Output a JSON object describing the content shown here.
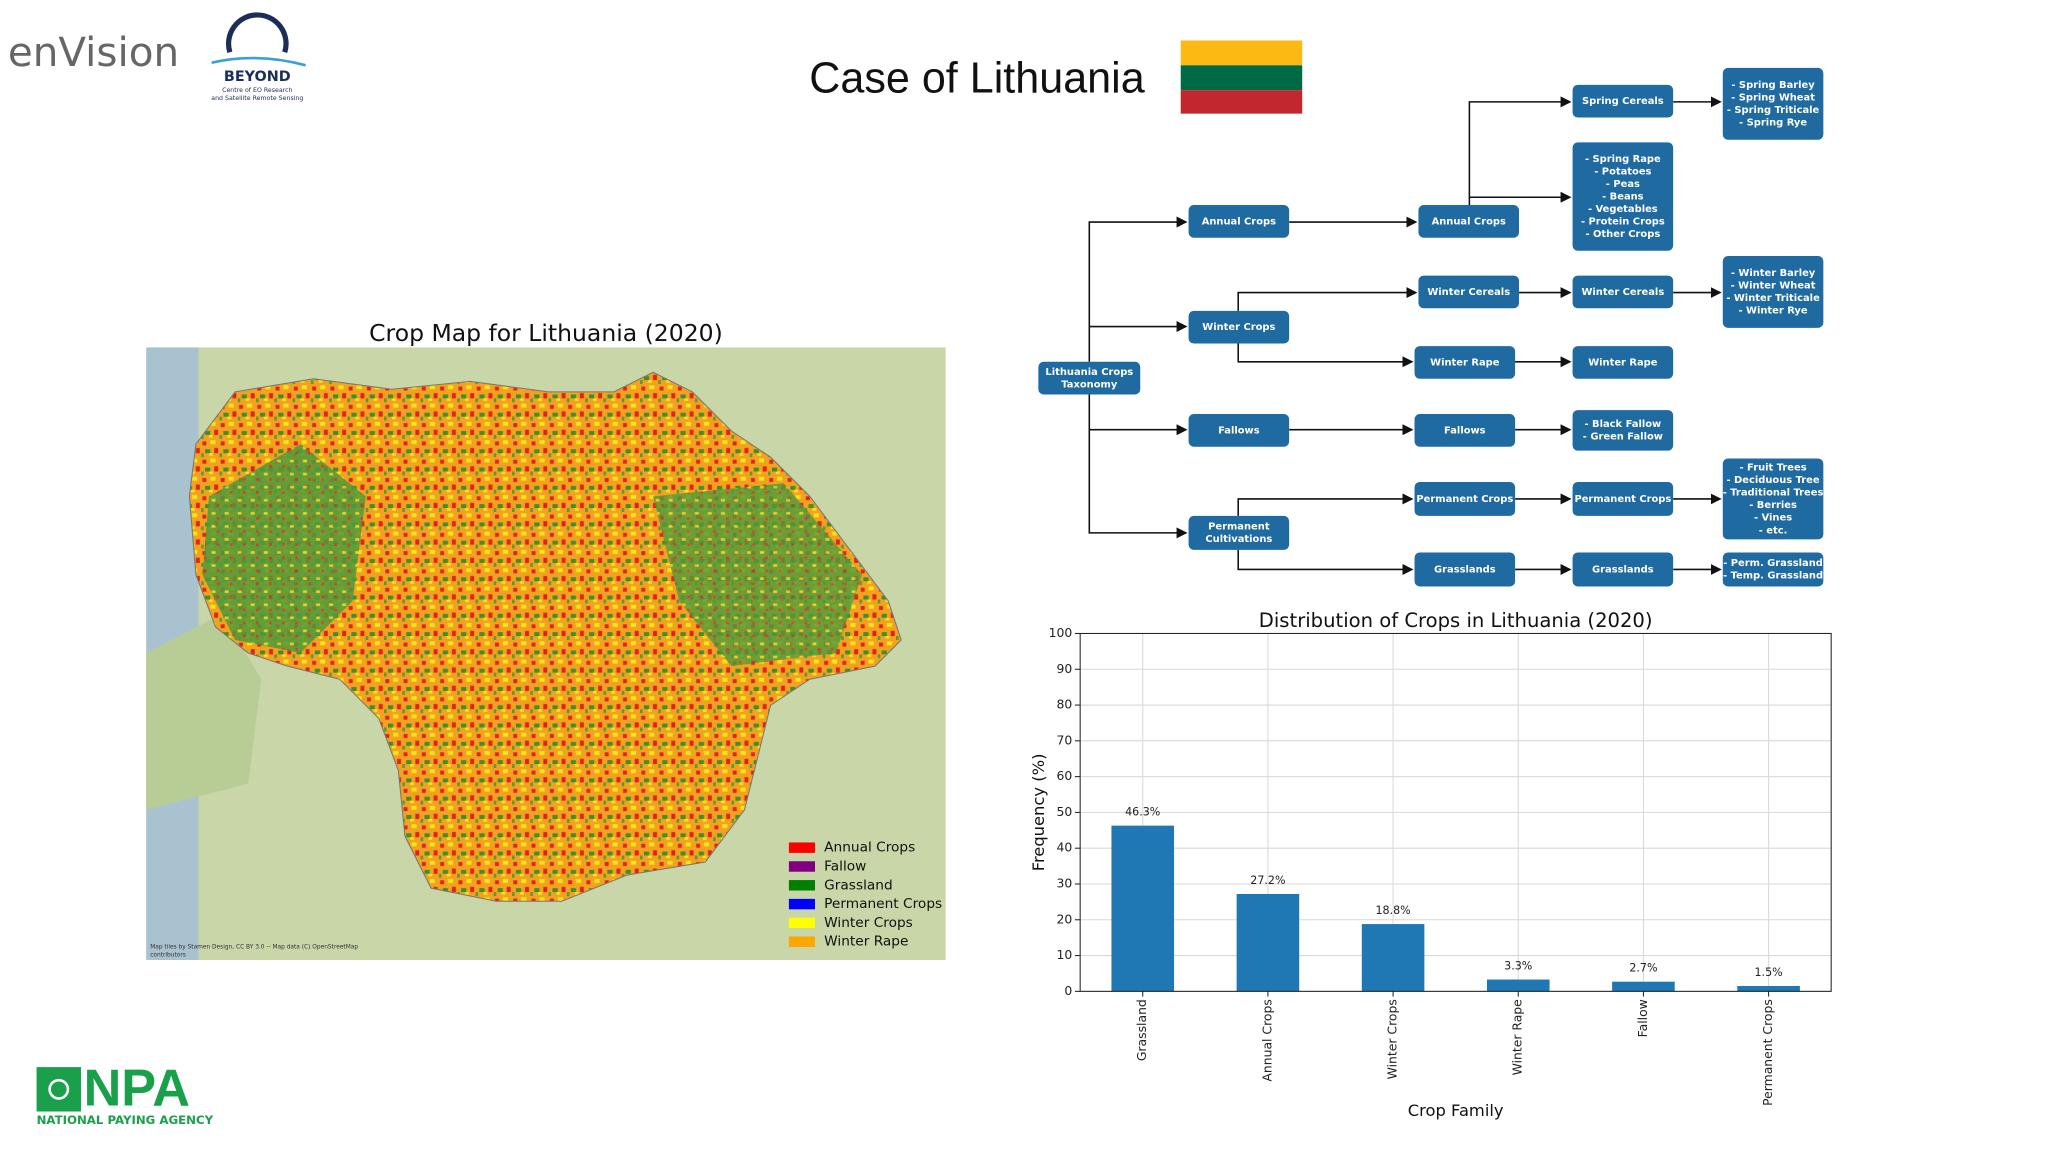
{
  "header": {
    "title": "Case of Lithuania",
    "logo_envision": "enVision",
    "logo_beyond": "BEYOND",
    "logo_beyond_sub": [
      "Centre of EO Research",
      "and Satellite Remote Sensing"
    ]
  },
  "map": {
    "title": "Crop Map for Lithuania (2020)",
    "legend": [
      {
        "name": "Annual Crops",
        "color": "#ff0000"
      },
      {
        "name": "Fallow",
        "color": "#800080"
      },
      {
        "name": "Grassland",
        "color": "#008000"
      },
      {
        "name": "Permanent Crops",
        "color": "#0000ff"
      },
      {
        "name": "Winter Crops",
        "color": "#ffff00"
      },
      {
        "name": "Winter Rape",
        "color": "#ffa500"
      }
    ],
    "attribution": [
      "Map tiles by Stamen Design, CC BY 3.0 -- Map data (C) OpenStreetMap",
      "contributors"
    ]
  },
  "diagram": {
    "nodes": [
      {
        "lines": [
          "Lithuania Crops",
          "Taxonomy"
        ]
      },
      {
        "lines": [
          "Annual Crops"
        ]
      },
      {
        "lines": [
          "Winter Crops"
        ]
      },
      {
        "lines": [
          "Fallows"
        ]
      },
      {
        "lines": [
          "Permanent",
          "Cultivations"
        ]
      },
      {
        "lines": [
          "Annual Crops"
        ]
      },
      {
        "lines": [
          "Winter Cereals"
        ]
      },
      {
        "lines": [
          "Winter Rape"
        ]
      },
      {
        "lines": [
          "Fallows"
        ]
      },
      {
        "lines": [
          "Permanent Crops"
        ]
      },
      {
        "lines": [
          "Grasslands"
        ]
      },
      {
        "lines": [
          "Spring Cereals"
        ]
      },
      {
        "lines": [
          "- Spring Rape",
          "- Potatoes",
          "- Peas",
          "- Beans",
          "- Vegetables",
          "- Protein Crops",
          "- Other Crops"
        ]
      },
      {
        "lines": [
          "Winter Cereals"
        ]
      },
      {
        "lines": [
          "Winter Rape"
        ]
      },
      {
        "lines": [
          "- Black Fallow",
          "- Green Fallow"
        ]
      },
      {
        "lines": [
          "Permanent Crops"
        ]
      },
      {
        "lines": [
          "Grasslands"
        ]
      },
      {
        "lines": [
          "- Spring Barley",
          "- Spring Wheat",
          "- Spring Triticale",
          "- Spring Rye"
        ]
      },
      {
        "lines": [
          "- Winter Barley",
          "- Winter Wheat",
          "- Winter Triticale",
          "- Winter Rye"
        ]
      },
      {
        "lines": [
          "- Fruit Trees",
          "- Deciduous Tree",
          "- Traditional Trees",
          "- Berries",
          "- Vines",
          "- etc."
        ]
      },
      {
        "lines": [
          "- Perm. Grassland",
          "- Temp. Grassland"
        ]
      }
    ]
  },
  "chart_data": {
    "type": "bar",
    "title": "Distribution of Crops in Lithuania (2020)",
    "xlabel": "Crop Family",
    "ylabel": "Frequency (%)",
    "categories": [
      "Grassland",
      "Annual Crops",
      "Winter Crops",
      "Winter Rape",
      "Fallow",
      "Permanent Crops"
    ],
    "values": [
      46.3,
      27.2,
      18.8,
      3.3,
      2.7,
      1.5
    ],
    "value_labels": [
      "46.3%",
      "27.2%",
      "18.8%",
      "3.3%",
      "2.7%",
      "1.5%"
    ],
    "color": "#1f77b4",
    "ylim": [
      0,
      100
    ],
    "yticks": [
      0,
      10,
      20,
      30,
      40,
      50,
      60,
      70,
      80,
      90,
      100
    ],
    "grid": true
  },
  "footer": {
    "logo": "NPA",
    "agency": "NATIONAL PAYING AGENCY"
  }
}
